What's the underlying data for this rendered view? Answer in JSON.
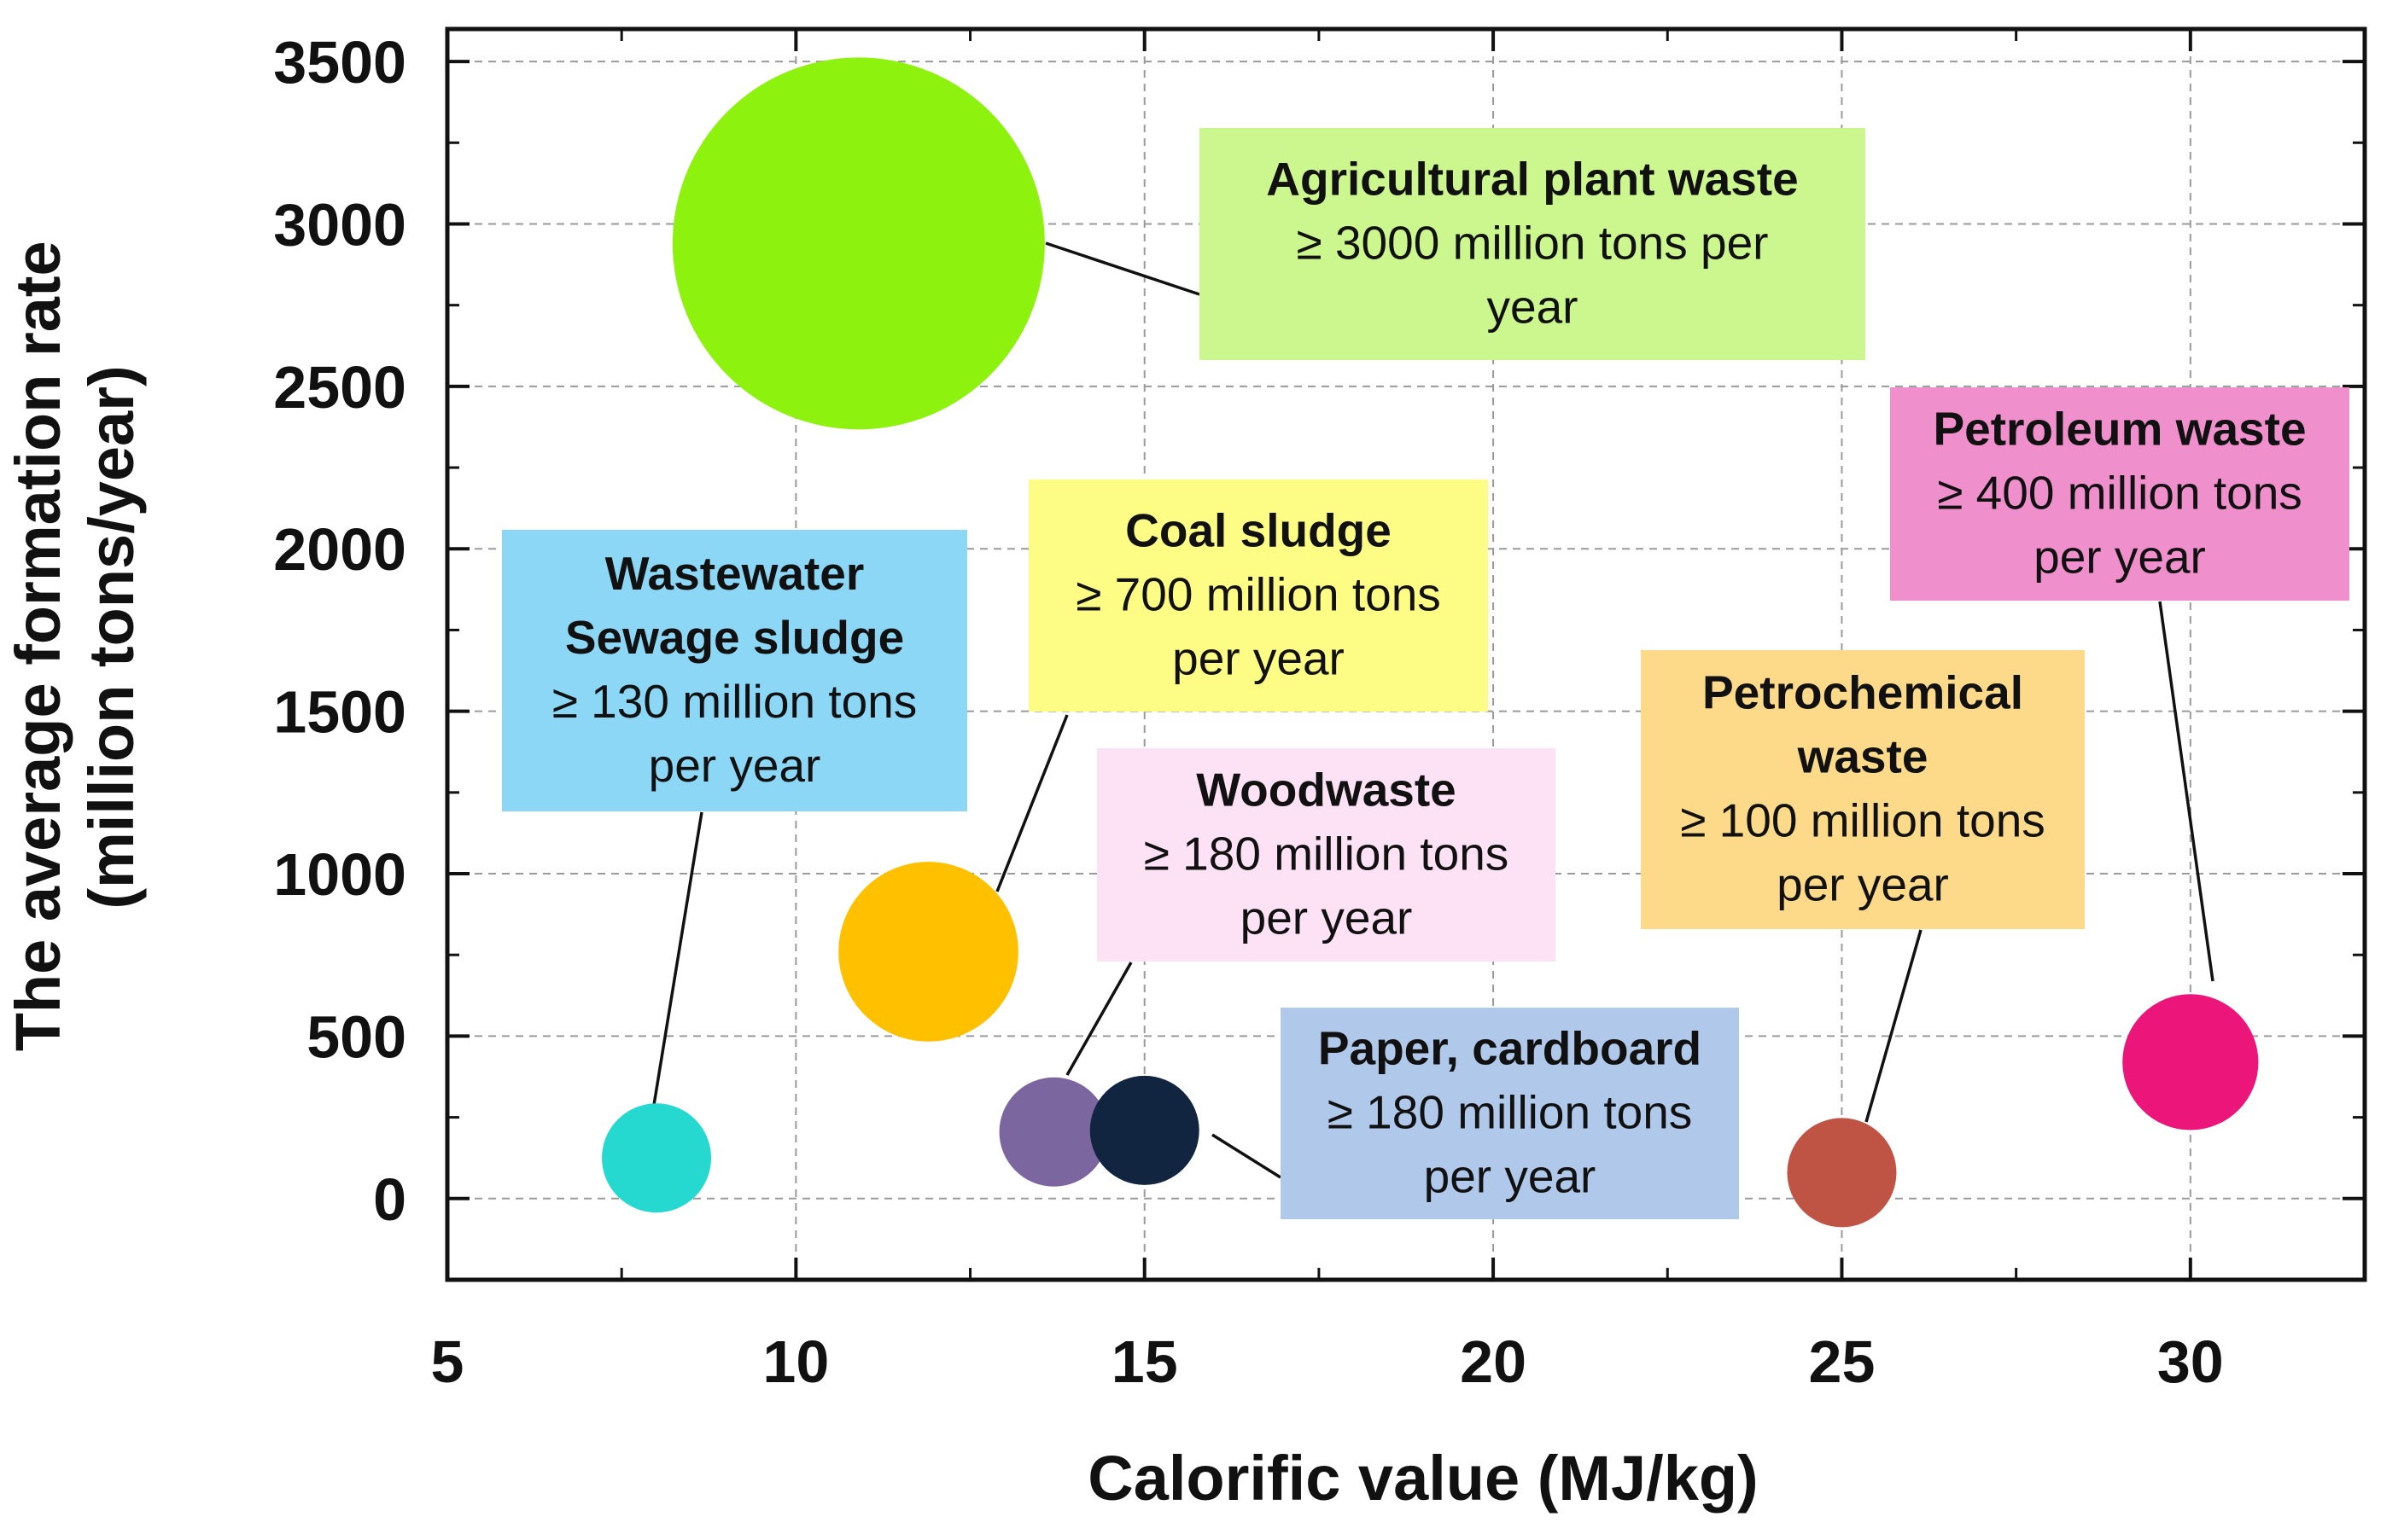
{
  "chart_data": {
    "type": "bubble",
    "title": "",
    "xlabel": "Calorific value (MJ/kg)",
    "ylabel": [
      "The average formation rate",
      "(million tons/year)"
    ],
    "xlim": [
      5,
      32.5
    ],
    "ylim": [
      -250,
      3600
    ],
    "xticks": [
      5,
      10,
      15,
      20,
      25,
      30
    ],
    "yticks": [
      0,
      500,
      1000,
      1500,
      2000,
      2500,
      3000,
      3500
    ],
    "grid": true,
    "series": [
      {
        "name": "Agricultural plant waste",
        "x": 10.9,
        "y": 2940,
        "size": 3000,
        "color": "#8ef20f"
      },
      {
        "name": "Coal sludge",
        "x": 11.9,
        "y": 760,
        "size": 700,
        "color": "#ffc000"
      },
      {
        "name": "Wastewater Sewage sludge",
        "x": 8.0,
        "y": 125,
        "size": 130,
        "color": "#26d9d0"
      },
      {
        "name": "Woodwaste",
        "x": 13.7,
        "y": 205,
        "size": 180,
        "color": "#7b66a0"
      },
      {
        "name": "Paper, cardboard",
        "x": 15.0,
        "y": 210,
        "size": 180,
        "color": "#122540"
      },
      {
        "name": "Petrochemical waste",
        "x": 25.0,
        "y": 80,
        "size": 100,
        "color": "#c05444"
      },
      {
        "name": "Petroleum waste",
        "x": 30.0,
        "y": 420,
        "size": 400,
        "color": "#ec157a"
      }
    ],
    "annotations": [
      {
        "target": "Agricultural plant waste",
        "title": [
          "Agricultural plant waste"
        ],
        "lines": [
          "≥ 3000 million tons per",
          "year"
        ],
        "box_color": "#ccf78f"
      },
      {
        "target": "Coal sludge",
        "title": [
          "Coal sludge"
        ],
        "lines": [
          "≥ 700 million tons",
          "per year"
        ],
        "box_color": "#fdfd86"
      },
      {
        "target": "Wastewater Sewage sludge",
        "title": [
          "Wastewater",
          "Sewage sludge"
        ],
        "lines": [
          "≥ 130 million tons",
          "per year"
        ],
        "box_color": "#8cd7f5"
      },
      {
        "target": "Woodwaste",
        "title": [
          "Woodwaste"
        ],
        "lines": [
          "≥ 180 million tons",
          "per year"
        ],
        "box_color": "#fde2f5"
      },
      {
        "target": "Paper, cardboard",
        "title": [
          "Paper, cardboard"
        ],
        "lines": [
          "≥ 180 million tons",
          "per year"
        ],
        "box_color": "#b0c8ea"
      },
      {
        "target": "Petrochemical waste",
        "title": [
          "Petrochemical",
          "waste"
        ],
        "lines": [
          "≥ 100 million tons",
          "per year"
        ],
        "box_color": "#fcda8a"
      },
      {
        "target": "Petroleum waste",
        "title": [
          "Petroleum waste"
        ],
        "lines": [
          "≥ 400 million tons",
          "per year"
        ],
        "box_color": "#ef8fcc"
      }
    ]
  }
}
